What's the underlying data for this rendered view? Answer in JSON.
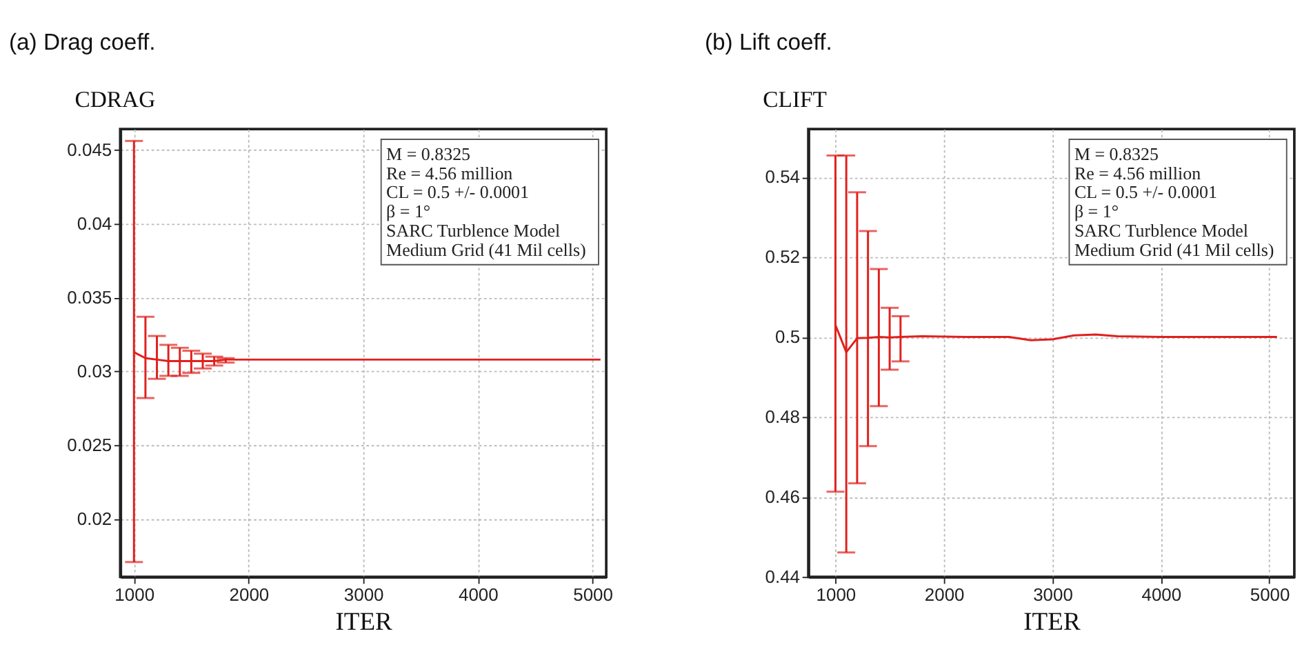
{
  "chart_data": [
    {
      "type": "line",
      "title": "(a) Drag coeff.",
      "ylabel": "CDRAG",
      "xlabel": "ITER",
      "xlim": [
        880,
        5120
      ],
      "ylim": [
        0.0161,
        0.0464
      ],
      "xticks": [
        1000,
        2000,
        3000,
        4000,
        5000
      ],
      "yticks": [
        0.02,
        0.025,
        0.03,
        0.035,
        0.04,
        0.045
      ],
      "grid": true,
      "marker": "none",
      "line_style": "solid",
      "series": [
        {
          "color": "#e0201c",
          "x": [
            1000,
            1100,
            1200,
            1300,
            1400,
            1500,
            1600,
            1700,
            1800,
            2000,
            2200,
            3000,
            3500,
            4000,
            5070
          ],
          "values": [
            0.0313,
            0.0309,
            0.0308,
            0.0307,
            0.0307,
            0.0307,
            0.0307,
            0.0307,
            0.0308,
            0.0308,
            0.0308,
            0.0308,
            0.0308,
            0.0308,
            0.0308
          ],
          "errors": [
            [
              0.0171,
              0.0456
            ],
            [
              0.0282,
              0.0337
            ],
            [
              0.0295,
              0.0324
            ],
            [
              0.0297,
              0.0318
            ],
            [
              0.0297,
              0.0316
            ],
            [
              0.0299,
              0.0314
            ],
            [
              0.0302,
              0.0312
            ],
            [
              0.0304,
              0.031
            ],
            [
              0.0306,
              0.0309
            ],
            null,
            null,
            null,
            null,
            null,
            null
          ]
        }
      ],
      "annotations": [
        "M = 0.8325",
        "Re = 4.56 million",
        "CL = 0.5 +/- 0.0001",
        "β = 1°",
        "SARC Turblence Model",
        "Medium Grid (41 Mil cells)"
      ]
    },
    {
      "type": "line",
      "title": "(b) Lift coeff.",
      "ylabel": "CLIFT",
      "xlabel": "ITER",
      "xlim": [
        750,
        5230
      ],
      "ylim": [
        0.44,
        0.552
      ],
      "xticks": [
        1000,
        2000,
        3000,
        4000,
        5000
      ],
      "yticks": [
        0.44,
        0.46,
        0.48,
        0.5,
        0.52,
        0.54
      ],
      "grid": true,
      "marker": "none",
      "line_style": "solid",
      "series": [
        {
          "color": "#e0201c",
          "x": [
            1000,
            1100,
            1200,
            1300,
            1400,
            1500,
            1600,
            1800,
            2200,
            2600,
            2800,
            3000,
            3200,
            3400,
            3600,
            4000,
            5070
          ],
          "values": [
            0.503,
            0.4962,
            0.4997,
            0.4998,
            0.5,
            0.4999,
            0.5,
            0.5002,
            0.5,
            0.5,
            0.4992,
            0.4994,
            0.5004,
            0.5006,
            0.5002,
            0.5,
            0.5
          ],
          "errors": [
            [
              0.4613,
              0.5454
            ],
            [
              0.4461,
              0.5454
            ],
            [
              0.4634,
              0.5362
            ],
            [
              0.4727,
              0.5265
            ],
            [
              0.4827,
              0.517
            ],
            [
              0.4918,
              0.5073
            ],
            [
              0.4939,
              0.5052
            ],
            null,
            null,
            null,
            null,
            null,
            null,
            null,
            null,
            null,
            null
          ]
        }
      ],
      "annotations": [
        "M = 0.8325",
        "Re = 4.56 million",
        "CL = 0.5 +/- 0.0001",
        "β = 1°",
        "SARC Turblence Model",
        "Medium Grid (41 Mil cells)"
      ]
    }
  ]
}
